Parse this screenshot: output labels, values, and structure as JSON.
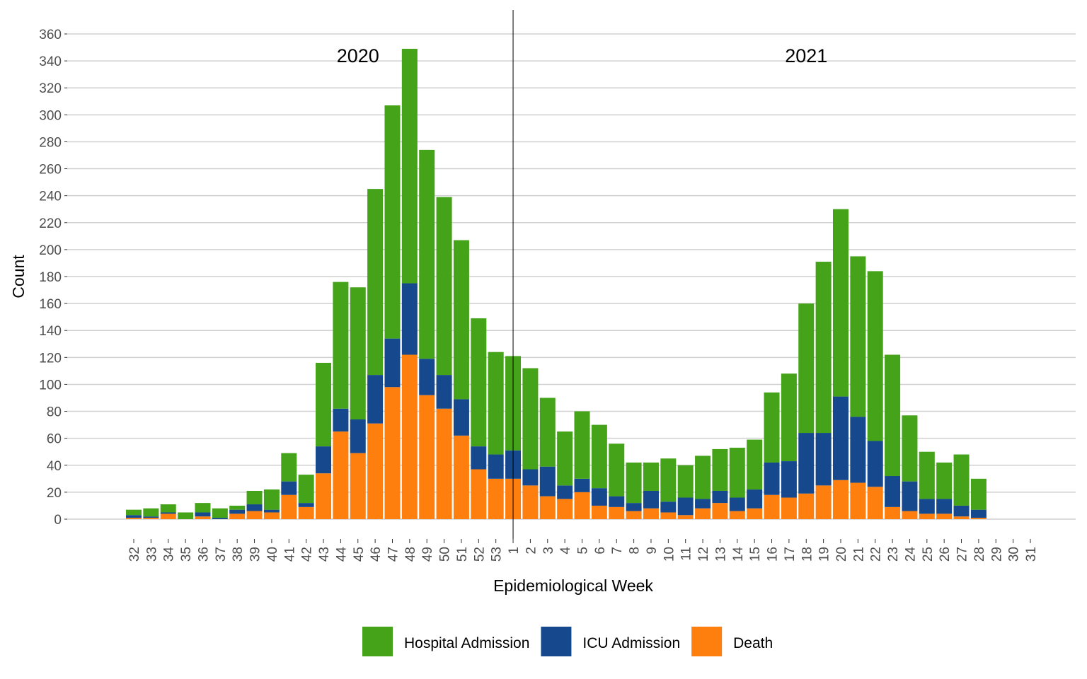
{
  "chart_data": {
    "type": "stacked_bar",
    "x_label": "Epidemiological Week",
    "y_label": "Count",
    "categories": [
      "32",
      "33",
      "34",
      "35",
      "36",
      "37",
      "38",
      "39",
      "40",
      "41",
      "42",
      "43",
      "44",
      "45",
      "46",
      "47",
      "48",
      "49",
      "50",
      "51",
      "52",
      "53",
      "1",
      "2",
      "3",
      "4",
      "5",
      "6",
      "7",
      "8",
      "9",
      "10",
      "11",
      "12",
      "13",
      "14",
      "15",
      "16",
      "17",
      "18",
      "19",
      "20",
      "21",
      "22",
      "23",
      "24",
      "25",
      "26",
      "27",
      "28",
      "29",
      "30",
      "31"
    ],
    "series": [
      {
        "name": "Death",
        "color": "#ff7f0e",
        "values": [
          1,
          1,
          4,
          0,
          2,
          0,
          4,
          6,
          5,
          18,
          9,
          34,
          65,
          49,
          71,
          98,
          122,
          92,
          82,
          62,
          37,
          30,
          30,
          25,
          17,
          15,
          20,
          10,
          9,
          6,
          8,
          5,
          3,
          8,
          12,
          6,
          8,
          18,
          16,
          19,
          25,
          29,
          27,
          24,
          9,
          6,
          4,
          4,
          2,
          1,
          0,
          0,
          0
        ]
      },
      {
        "name": "ICU Admission",
        "color": "#15488c",
        "values": [
          2,
          1,
          1,
          0,
          3,
          1,
          3,
          5,
          2,
          10,
          3,
          20,
          17,
          25,
          36,
          36,
          53,
          27,
          25,
          27,
          17,
          18,
          21,
          12,
          22,
          10,
          10,
          13,
          8,
          6,
          13,
          8,
          13,
          7,
          9,
          10,
          14,
          24,
          27,
          45,
          39,
          62,
          49,
          34,
          23,
          22,
          11,
          11,
          8,
          6,
          0,
          0,
          0
        ]
      },
      {
        "name": "Hospital Admission",
        "color": "#45a319",
        "values": [
          4,
          6,
          6,
          5,
          7,
          7,
          3,
          10,
          15,
          21,
          21,
          62,
          94,
          98,
          138,
          173,
          174,
          155,
          132,
          118,
          95,
          76,
          70,
          75,
          51,
          40,
          50,
          47,
          39,
          30,
          21,
          32,
          24,
          32,
          31,
          37,
          37,
          52,
          65,
          96,
          127,
          139,
          119,
          126,
          90,
          49,
          35,
          27,
          38,
          23,
          0,
          0,
          0
        ]
      }
    ],
    "legend_order": [
      2,
      1,
      0
    ],
    "annotations": [
      {
        "text": "2020",
        "category": "45"
      },
      {
        "text": "2021",
        "category": "18"
      }
    ],
    "divider_category": "1",
    "ylim": [
      -10,
      368
    ],
    "yticks": [
      0,
      20,
      40,
      60,
      80,
      100,
      120,
      140,
      160,
      180,
      200,
      220,
      240,
      260,
      280,
      300,
      320,
      340,
      360
    ],
    "grid": true
  }
}
